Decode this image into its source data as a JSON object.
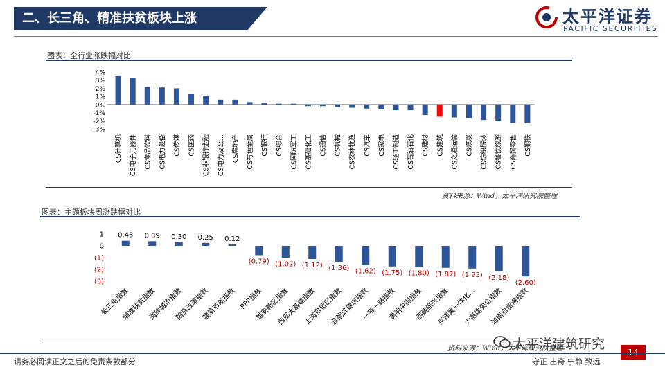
{
  "header": {
    "title": "二、长三角、精准扶贫板块上涨",
    "logo_cn": "太平洋证券",
    "logo_en": "PACIFIC SECURITIES"
  },
  "charts": {
    "industry": {
      "caption": "图表：全行业涨跌幅对比",
      "source": "资料来源：Wind，太平洋研究院整理"
    },
    "theme": {
      "caption": "图表：主题板块周涨跌幅对比",
      "source": "资料来源：Wind，太平洋研究院整理"
    }
  },
  "footer": {
    "disclaimer": "请务必阅读正文之后的免责条款部分",
    "motto": "守正  出奇  宁静  致远",
    "page": "14",
    "watermark": "太平洋建筑研究"
  },
  "colors": {
    "navy": "#1f3864",
    "bar_blue": "#2e5597",
    "highlight_red": "#ff0000",
    "negative_label": "#c00000"
  },
  "chart_data": [
    {
      "type": "bar",
      "categories": [
        "CS计算机",
        "CS电子元器件",
        "CS食品饮料",
        "CS电力设备",
        "CS传媒",
        "CS医药",
        "CS非银行金融",
        "CS电力及公…",
        "CS房地产",
        "CS有色金属",
        "CS银行",
        "CS综合",
        "CS国防军工",
        "CS基础化工",
        "CS通信",
        "CS机械",
        "CS农林牧渔",
        "CS汽车",
        "CS家电",
        "CS轻工制造",
        "CS石油石化",
        "CS建材",
        "CS建筑",
        "CS交通运输",
        "CS煤炭",
        "CS纺织服装",
        "CS餐饮旅游",
        "CS商贸零售",
        "CS钢铁"
      ],
      "values": [
        3.5,
        3.3,
        2.2,
        2.1,
        2.0,
        1.3,
        1.1,
        0.6,
        0.6,
        0.3,
        0.2,
        0.1,
        0.1,
        -0.2,
        -0.2,
        -0.3,
        -0.4,
        -0.5,
        -0.6,
        -0.7,
        -0.7,
        -1.3,
        -1.5,
        -1.6,
        -1.7,
        -1.9,
        -2.0,
        -2.3,
        -2.3
      ],
      "highlight": "CS建筑",
      "ylim": [
        -3,
        4
      ],
      "yticks": [
        "4%",
        "3%",
        "2%",
        "1%",
        "0%",
        "-1%",
        "-2%",
        "-3%"
      ],
      "ytick_values": [
        4,
        3,
        2,
        1,
        0,
        -1,
        -2,
        -3
      ]
    },
    {
      "type": "bar",
      "categories": [
        "长三角指数",
        "精准扶贫指数",
        "海绵城市指数",
        "国资改革指数",
        "建筑节能指数",
        "PPP指数",
        "雄安新区指数",
        "西部大基建指数",
        "上海自贸区指数",
        "装配式建筑指数",
        "一带一路指数",
        "美丽中国指数",
        "西藏振兴指数",
        "京津冀一体化…",
        "大基建央企指数",
        "海南自贸港指数"
      ],
      "values": [
        0.43,
        0.39,
        0.3,
        0.25,
        0.12,
        -0.79,
        -1.02,
        -1.12,
        -1.36,
        -1.62,
        -1.75,
        -1.8,
        -1.87,
        -1.93,
        -2.18,
        -2.6
      ],
      "data_labels": [
        "0.43",
        "0.39",
        "0.30",
        "0.25",
        "0.12",
        "(0.79)",
        "(1.02)",
        "(1.12)",
        "(1.36)",
        "(1.62)",
        "(1.75)",
        "(1.80)",
        "(1.87)",
        "(1.93)",
        "(2.18)",
        "(2.60)"
      ],
      "ylim": [
        -3,
        1
      ],
      "yticks": [
        "1",
        "0",
        "(1)",
        "(2)",
        "(3)"
      ],
      "ytick_values": [
        1,
        0,
        -1,
        -2,
        -3
      ]
    }
  ]
}
